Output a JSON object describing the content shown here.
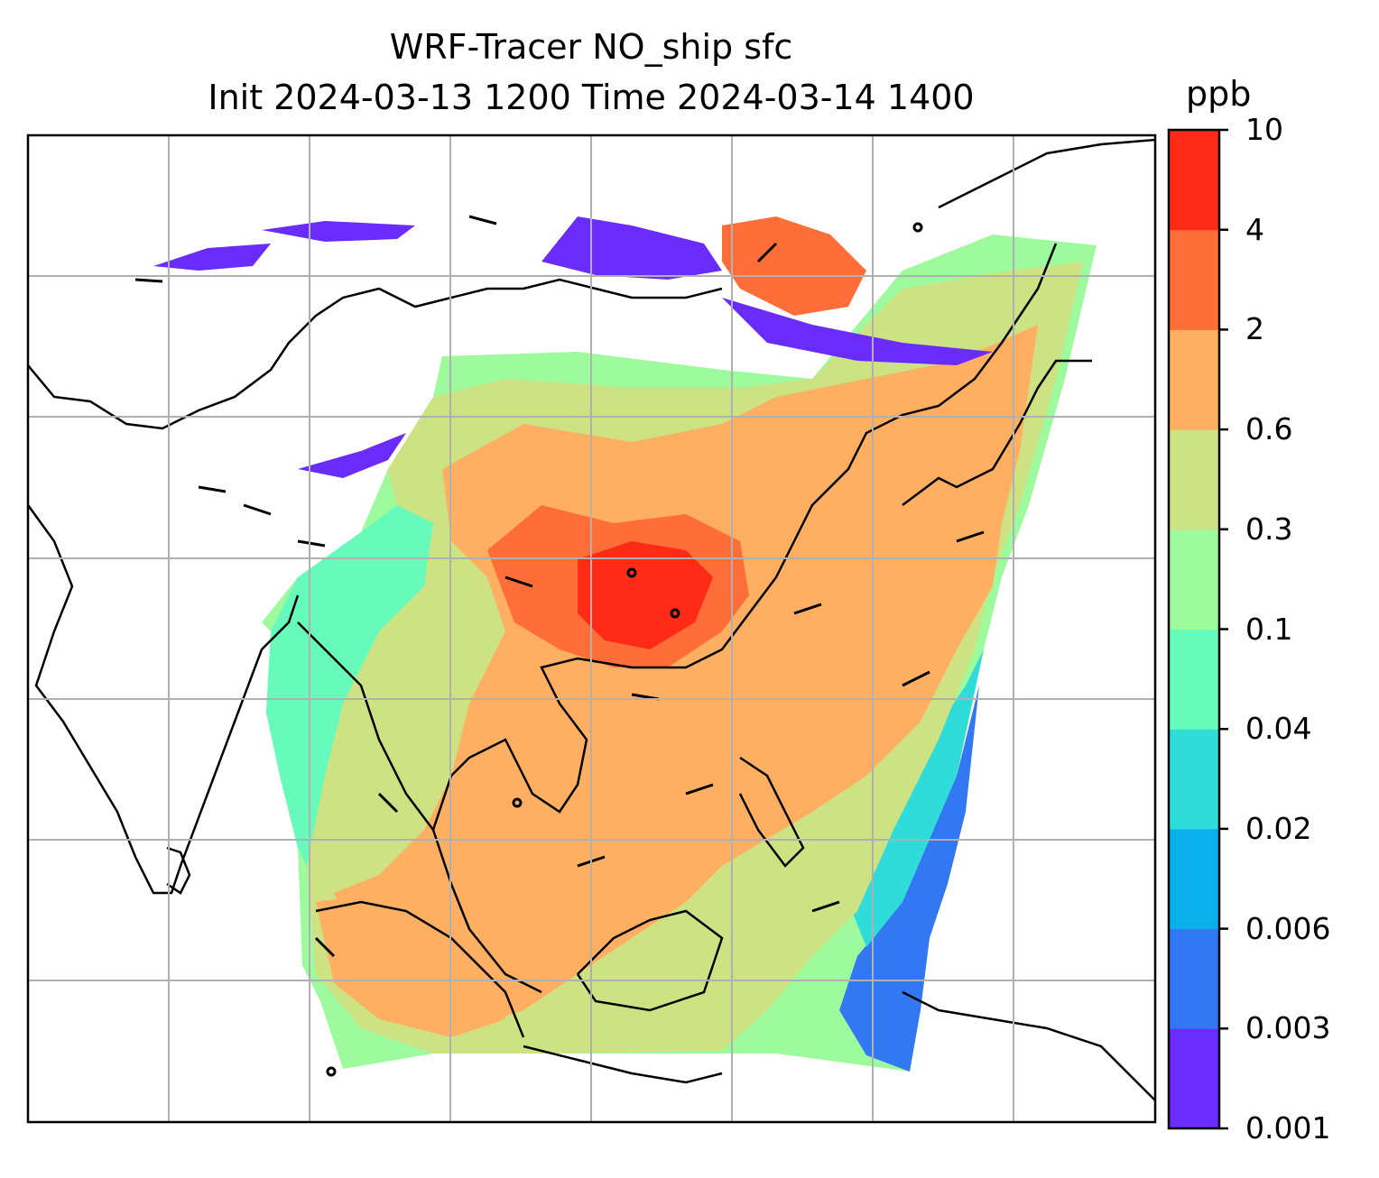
{
  "title": {
    "line1": "WRF-Tracer NO_ship sfc",
    "line2": "Init 2024-03-13 1200 Time 2024-03-14 1400"
  },
  "colorbar": {
    "unit": "ppb",
    "levels": [
      "0.001",
      "0.003",
      "0.006",
      "0.02",
      "0.04",
      "0.1",
      "0.3",
      "0.6",
      "2",
      "4",
      "10"
    ],
    "colors": [
      "#6a2cfb",
      "#3178f2",
      "#0bb0ea",
      "#2fdcd9",
      "#66fbbb",
      "#9dfb9d",
      "#cde283",
      "#feaf62",
      "#ff6e38",
      "#ff2b16"
    ]
  },
  "map": {
    "background": "#ffffff",
    "coastline_color": "#000000",
    "grid_color": "#b0b0b0"
  }
}
